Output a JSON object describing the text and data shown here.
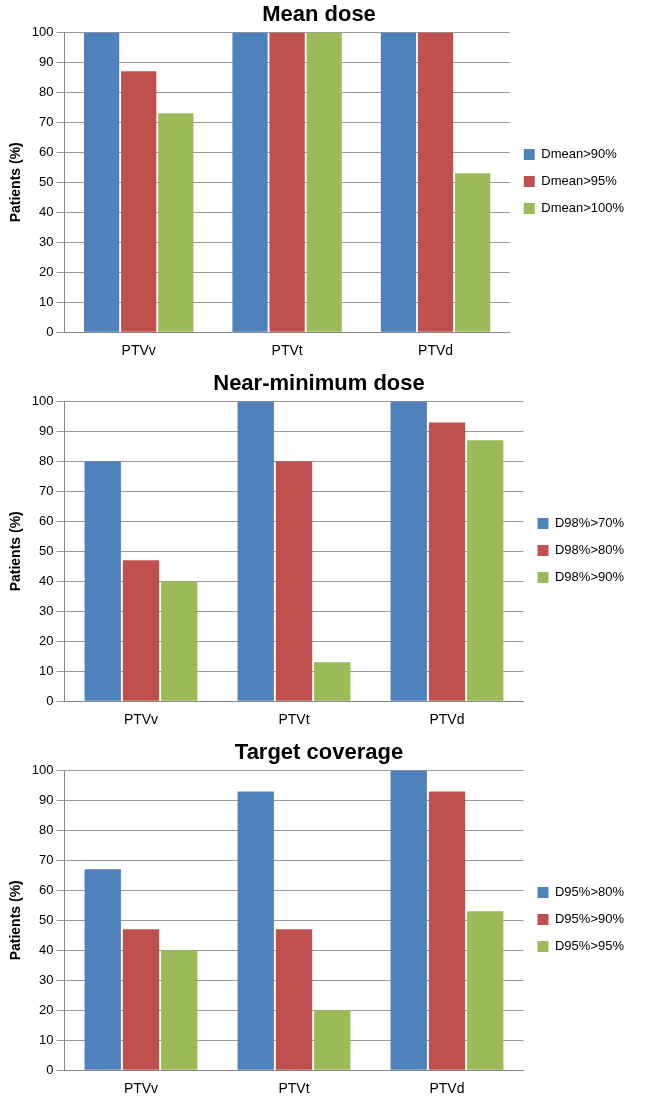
{
  "chart_data": [
    {
      "type": "bar",
      "title": "Mean dose",
      "ylabel": "Patients (%)",
      "categories": [
        "PTVv",
        "PTVt",
        "PTVd"
      ],
      "ylim": [
        0,
        100
      ],
      "yticks": [
        0,
        10,
        20,
        30,
        40,
        50,
        60,
        70,
        80,
        90,
        100
      ],
      "grid": "y",
      "legend": "right",
      "series": [
        {
          "name": "Dmean>90%",
          "color": "#4f81bd",
          "values": [
            100,
            100,
            100
          ]
        },
        {
          "name": "Dmean>95%",
          "color": "#c0504d",
          "values": [
            87,
            100,
            100
          ]
        },
        {
          "name": "Dmean>100%",
          "color": "#9bbb59",
          "values": [
            73,
            100,
            53
          ]
        }
      ]
    },
    {
      "type": "bar",
      "title": "Near-minimum dose",
      "ylabel": "Patients (%)",
      "categories": [
        "PTVv",
        "PTVt",
        "PTVd"
      ],
      "ylim": [
        0,
        100
      ],
      "yticks": [
        0,
        10,
        20,
        30,
        40,
        50,
        60,
        70,
        80,
        90,
        100
      ],
      "grid": "y",
      "legend": "right",
      "series": [
        {
          "name": "D98%>70%",
          "color": "#4f81bd",
          "values": [
            80,
            100,
            100
          ]
        },
        {
          "name": "D98%>80%",
          "color": "#c0504d",
          "values": [
            47,
            80,
            93
          ]
        },
        {
          "name": "D98%>90%",
          "color": "#9bbb59",
          "values": [
            40,
            13,
            87
          ]
        }
      ]
    },
    {
      "type": "bar",
      "title": "Target coverage",
      "ylabel": "Patients (%)",
      "categories": [
        "PTVv",
        "PTVt",
        "PTVd"
      ],
      "ylim": [
        0,
        100
      ],
      "yticks": [
        0,
        10,
        20,
        30,
        40,
        50,
        60,
        70,
        80,
        90,
        100
      ],
      "grid": "y",
      "legend": "right",
      "series": [
        {
          "name": "D95%>80%",
          "color": "#4f81bd",
          "values": [
            67,
            93,
            100
          ]
        },
        {
          "name": "D95%>90%",
          "color": "#c0504d",
          "values": [
            47,
            47,
            93
          ]
        },
        {
          "name": "D95%>95%",
          "color": "#9bbb59",
          "values": [
            40,
            20,
            53
          ]
        }
      ]
    }
  ]
}
